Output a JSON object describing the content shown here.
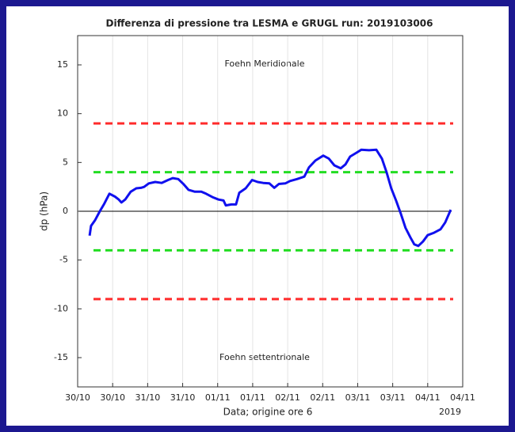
{
  "chart_data": {
    "type": "line",
    "title": "Differenza di pressione tra LESMA e GRUGL run: 2019103006",
    "xlabel": "Data; origine ore 6",
    "ylabel": "dp (hPa)",
    "x_note": "2019",
    "annotations": [
      "Foehn Meridionale",
      "Foehn settentrionale"
    ],
    "xlim": [
      0,
      132
    ],
    "xticks": [
      {
        "value": 0,
        "label": "30/10"
      },
      {
        "value": 12,
        "label": "30/10"
      },
      {
        "value": 24,
        "label": "31/10"
      },
      {
        "value": 36,
        "label": "31/10"
      },
      {
        "value": 48,
        "label": "01/11"
      },
      {
        "value": 60,
        "label": "01/11"
      },
      {
        "value": 72,
        "label": "02/11"
      },
      {
        "value": 84,
        "label": "02/11"
      },
      {
        "value": 96,
        "label": "03/11"
      },
      {
        "value": 108,
        "label": "03/11"
      },
      {
        "value": 120,
        "label": "04/11"
      },
      {
        "value": 132,
        "label": "04/11"
      }
    ],
    "ylim": [
      -18,
      18
    ],
    "yticks": [
      -15,
      -10,
      -5,
      0,
      5,
      10,
      15
    ],
    "grid": true,
    "hlines": [
      {
        "value": 9,
        "color": "#ff2a2a",
        "dashed": true
      },
      {
        "value": 4,
        "color": "#22dd22",
        "dashed": true
      },
      {
        "value": 0,
        "color": "#000000",
        "dashed": false
      },
      {
        "value": -4,
        "color": "#22dd22",
        "dashed": true
      },
      {
        "value": -9,
        "color": "#ff2a2a",
        "dashed": true
      }
    ],
    "series": [
      {
        "color": "#1010ee",
        "x": [
          4.1,
          4.6,
          6,
          7.6,
          9,
          10.9,
          12.8,
          14.1,
          15,
          16.3,
          18.2,
          20.1,
          21.7,
          22.8,
          24.4,
          26.6,
          28.8,
          31,
          32.6,
          34.5,
          36.4,
          38,
          40.2,
          42.4,
          44,
          46.2,
          48.3,
          50,
          50.8,
          52.7,
          54.3,
          55.4,
          57.6,
          59.8,
          61.7,
          63.6,
          65.7,
          67.4,
          69,
          71.2,
          72.8,
          75.2,
          77.7,
          79.3,
          81.5,
          84.2,
          86.1,
          88,
          90.2,
          91.8,
          93.4,
          95.6,
          97.2,
          99.9,
          102.4,
          104.3,
          105.9,
          107.5,
          109.2,
          110.8,
          112.4,
          114.1,
          115.4,
          116.8,
          118.4,
          120,
          122.2,
          124.4,
          126,
          127.9
        ],
        "values": [
          -2.5,
          -1.5,
          -0.9,
          0,
          0.7,
          1.8,
          1.5,
          1.2,
          0.9,
          1.2,
          2.0,
          2.35,
          2.4,
          2.5,
          2.85,
          3.0,
          2.9,
          3.2,
          3.4,
          3.3,
          2.75,
          2.2,
          2.0,
          2.0,
          1.8,
          1.45,
          1.2,
          1.1,
          0.6,
          0.7,
          0.7,
          1.9,
          2.35,
          3.2,
          3.0,
          2.9,
          2.85,
          2.4,
          2.8,
          2.85,
          3.1,
          3.3,
          3.55,
          4.5,
          5.2,
          5.7,
          5.4,
          4.7,
          4.4,
          4.8,
          5.6,
          6.0,
          6.3,
          6.25,
          6.3,
          5.4,
          4.0,
          2.35,
          1.05,
          -0.25,
          -1.7,
          -2.7,
          -3.4,
          -3.55,
          -3.1,
          -2.45,
          -2.2,
          -1.85,
          -1.15,
          0.15
        ]
      }
    ]
  }
}
